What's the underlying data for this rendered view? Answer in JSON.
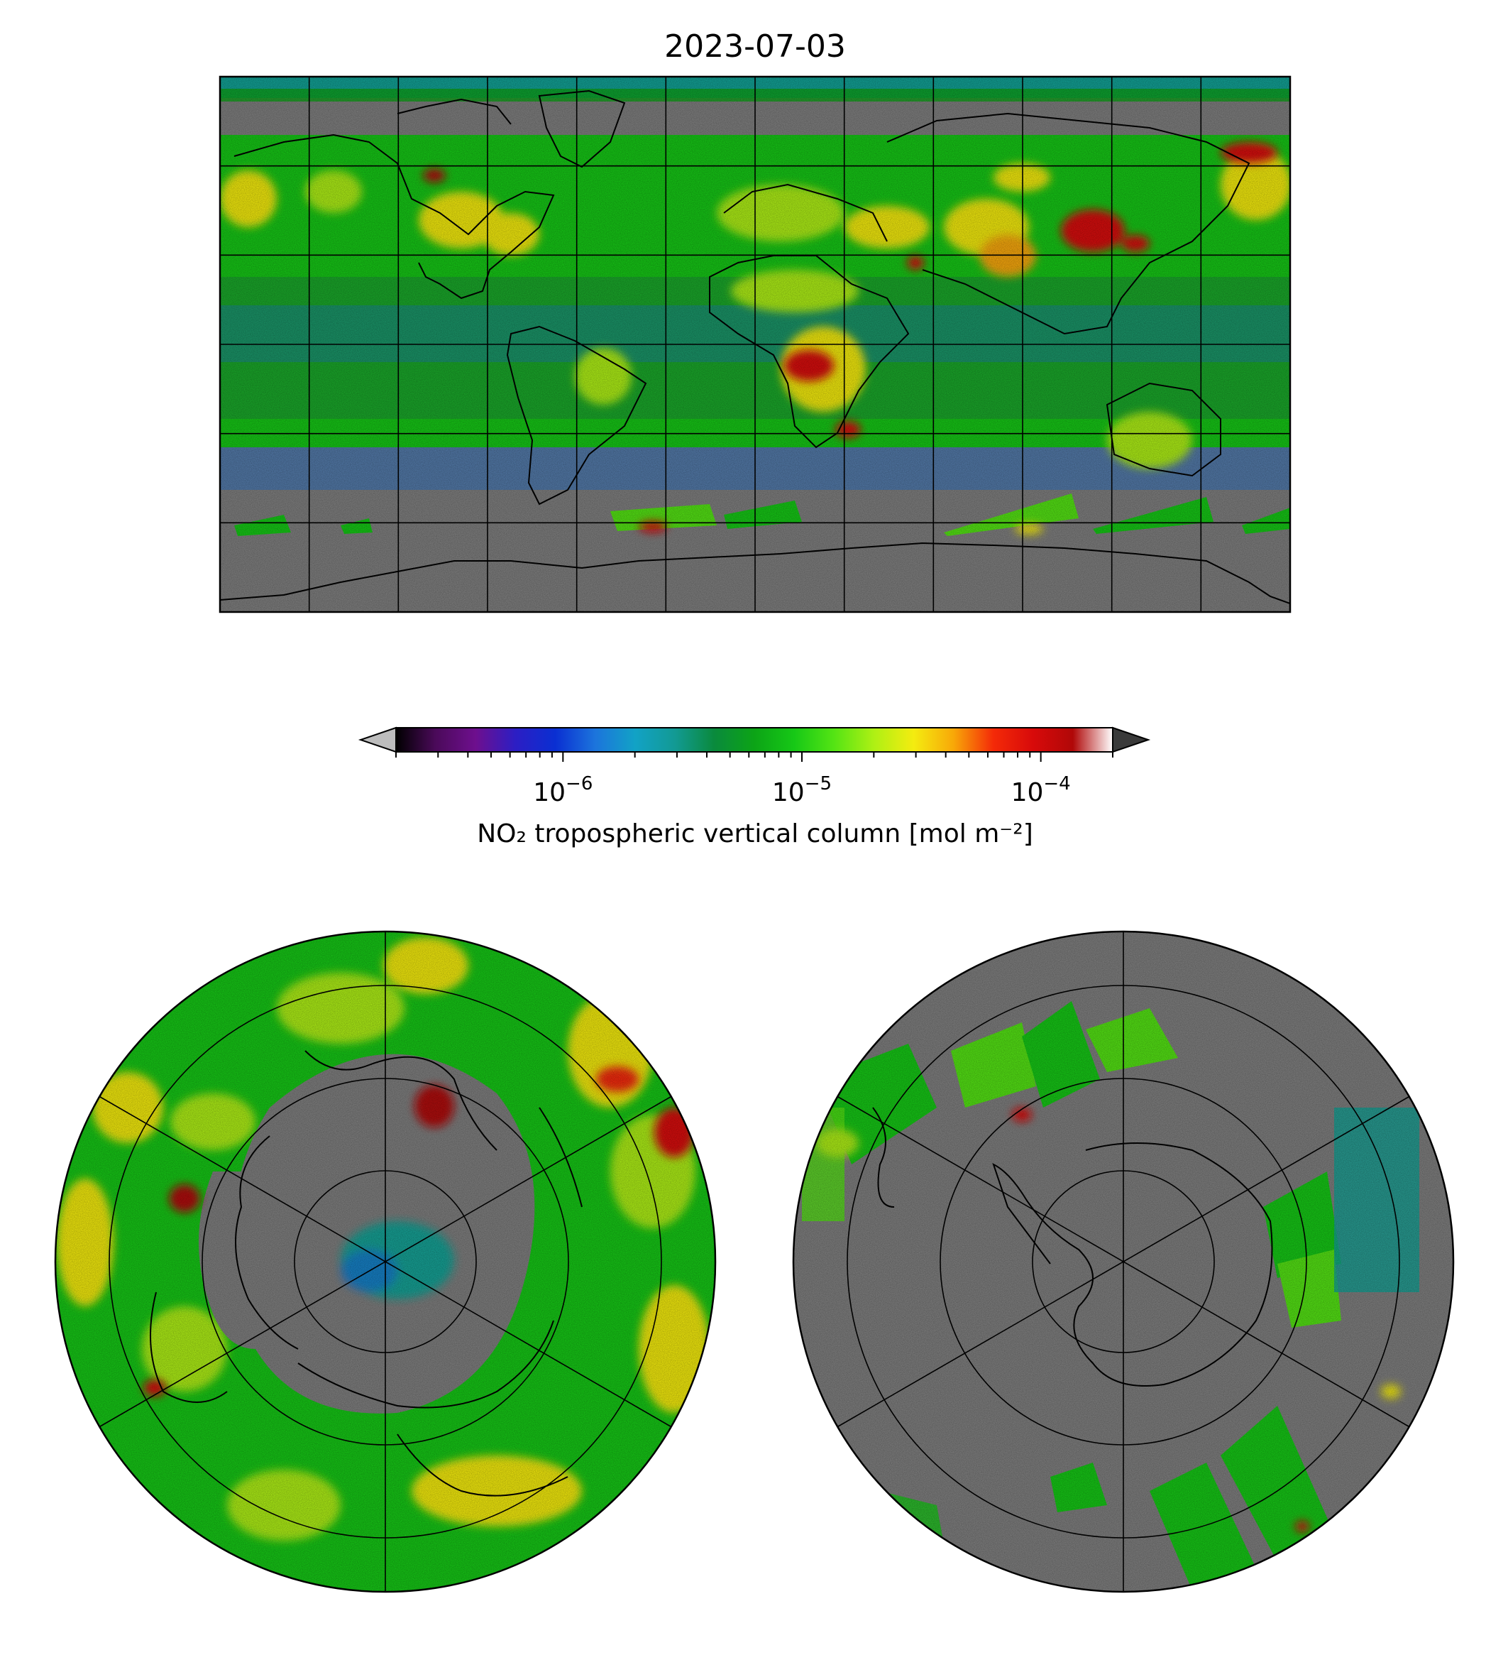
{
  "figure": {
    "title": "2023-07-03"
  },
  "colorbar": {
    "label": "NO₂ tropospheric vertical column [mol m⁻²]",
    "scale": "log",
    "range": [
      2e-07,
      0.0002
    ],
    "extend": "both",
    "ticks": [
      {
        "value": 1e-06,
        "base": "10",
        "exp": "−6"
      },
      {
        "value": 1e-05,
        "base": "10",
        "exp": "−5"
      },
      {
        "value": 0.0001,
        "base": "10",
        "exp": "−4"
      }
    ],
    "colors": [
      "#000000",
      "#4b0a5a",
      "#6e0f8e",
      "#2c1ec4",
      "#0a2fd2",
      "#1c74dc",
      "#12a2c6",
      "#129a94",
      "#0a8a3c",
      "#0ca416",
      "#16c816",
      "#54e414",
      "#aef014",
      "#f4ec10",
      "#f8a808",
      "#f42a08",
      "#d80a0a",
      "#b00808",
      "#ffffff"
    ],
    "under_color": "#bdbdbd",
    "over_color": "#3a3a3a"
  },
  "maps": {
    "global": {
      "projection": "Plate Carrée",
      "nodata_color": "#808080"
    },
    "north_polar": {
      "projection": "North Polar Stereographic",
      "nodata_color": "#808080"
    },
    "south_polar": {
      "projection": "South Polar Stereographic",
      "nodata_color": "#808080"
    }
  }
}
